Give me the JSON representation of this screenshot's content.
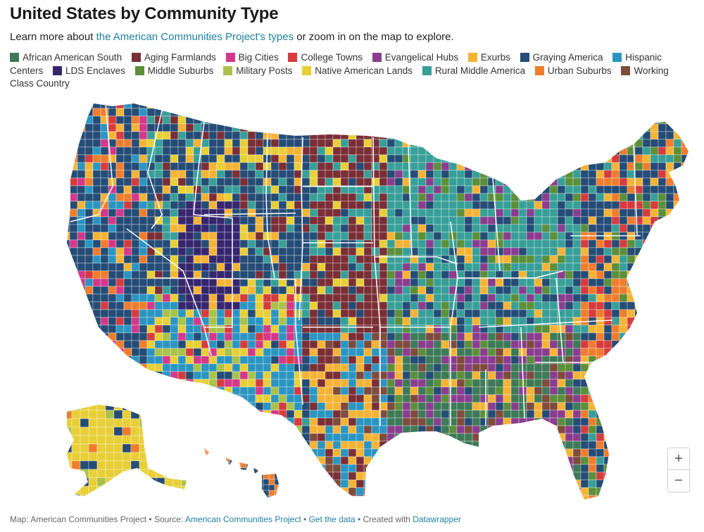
{
  "header": {
    "title": "United States by Community Type",
    "subtitle_before": "Learn more about ",
    "subtitle_link": "the American Communities Project's types",
    "subtitle_after": " or zoom in on the map to explore."
  },
  "legend": [
    {
      "label": "African American South",
      "color": "#3d7a57"
    },
    {
      "label": "Aging Farmlands",
      "color": "#7a2e35"
    },
    {
      "label": "Big Cities",
      "color": "#d3388a"
    },
    {
      "label": "College Towns",
      "color": "#d63b3e"
    },
    {
      "label": "Evangelical Hubs",
      "color": "#8a3d8f"
    },
    {
      "label": "Exurbs",
      "color": "#f5b335"
    },
    {
      "label": "Graying America",
      "color": "#244c76"
    },
    {
      "label": "Hispanic Centers",
      "color": "#2b95c2"
    },
    {
      "label": "LDS Enclaves",
      "color": "#36266e"
    },
    {
      "label": "Middle Suburbs",
      "color": "#5b8f3a"
    },
    {
      "label": "Military Posts",
      "color": "#a9c24a"
    },
    {
      "label": "Native American Lands",
      "color": "#e8cf38"
    },
    {
      "label": "Rural Middle America",
      "color": "#379f98"
    },
    {
      "label": "Urban Suburbs",
      "color": "#ef7d2d"
    },
    {
      "label": "Working Class Country",
      "color": "#7e4b3c"
    }
  ],
  "zoom": {
    "plus": "+",
    "minus": "−"
  },
  "footer": {
    "prefix": "Map: American Communities Project • Source: ",
    "source_link": "American Communities Project",
    "sep1": " • ",
    "data_link": "Get the data",
    "sep2": " • Created with ",
    "tool_link": "Datawrapper"
  },
  "icons": {
    "zoom_in": "plus-icon",
    "zoom_out": "minus-icon"
  }
}
